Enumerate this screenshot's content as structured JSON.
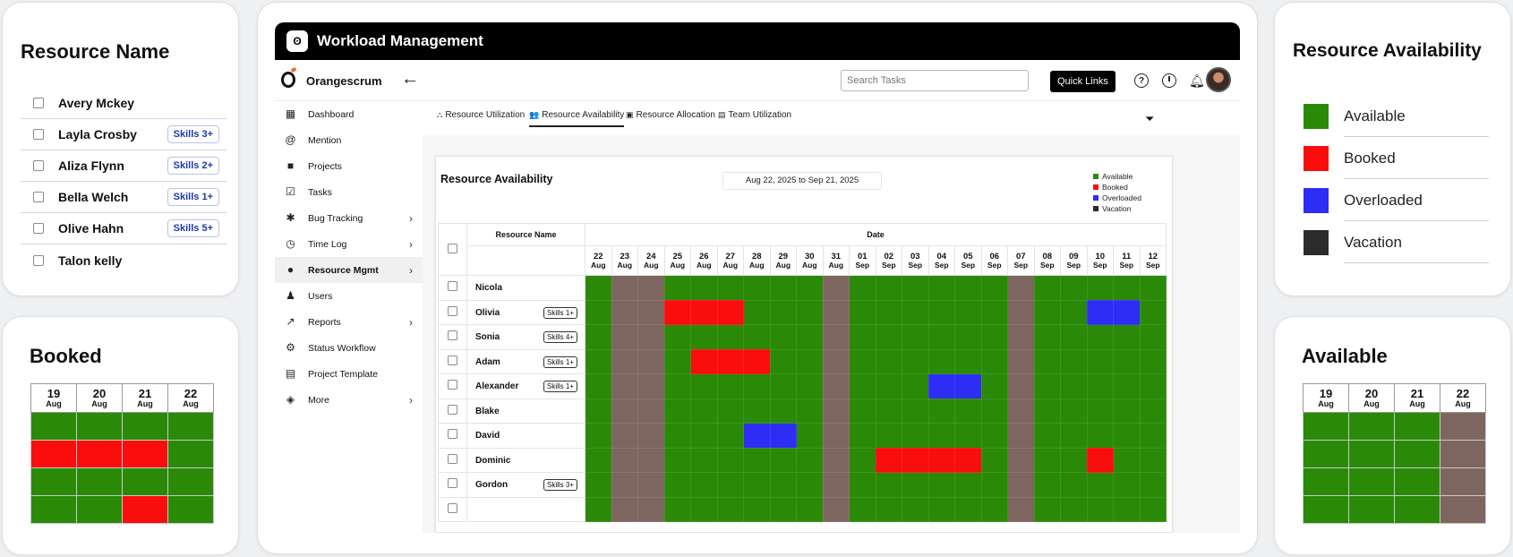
{
  "resource_name_card": {
    "title": "Resource Name",
    "items": [
      {
        "name": "Avery Mckey",
        "skill": ""
      },
      {
        "name": "Layla Crosby",
        "skill": "Skills 3+"
      },
      {
        "name": "Aliza Flynn",
        "skill": "Skills 2+"
      },
      {
        "name": "Bella Welch",
        "skill": "Skills 1+"
      },
      {
        "name": "Olive Hahn",
        "skill": "Skills 5+"
      },
      {
        "name": "Talon kelly",
        "skill": ""
      }
    ]
  },
  "booked_card": {
    "title": "Booked",
    "days": [
      {
        "d": "19",
        "m": "Aug"
      },
      {
        "d": "20",
        "m": "Aug"
      },
      {
        "d": "21",
        "m": "Aug"
      },
      {
        "d": "22",
        "m": "Aug"
      }
    ],
    "rows": [
      [
        "g",
        "g",
        "g",
        "g"
      ],
      [
        "r",
        "r",
        "r",
        "g"
      ],
      [
        "g",
        "g",
        "g",
        "g"
      ],
      [
        "g",
        "g",
        "r",
        "g"
      ]
    ]
  },
  "available_card": {
    "title": "Available",
    "days": [
      {
        "d": "19",
        "m": "Aug"
      },
      {
        "d": "20",
        "m": "Aug"
      },
      {
        "d": "21",
        "m": "Aug"
      },
      {
        "d": "22",
        "m": "Aug"
      }
    ],
    "rows": [
      [
        "g",
        "g",
        "g",
        "v"
      ],
      [
        "g",
        "g",
        "g",
        "v"
      ],
      [
        "g",
        "g",
        "g",
        "v"
      ],
      [
        "g",
        "g",
        "g",
        "v"
      ]
    ]
  },
  "legend_card": {
    "title": "Resource Availability",
    "items": [
      {
        "label": "Available",
        "color": "#2a8a08"
      },
      {
        "label": "Booked",
        "color": "#fa0d0d"
      },
      {
        "label": "Overloaded",
        "color": "#2d2df5"
      },
      {
        "label": "Vacation",
        "color": "#2b2b2b"
      }
    ]
  },
  "app": {
    "title": "Workload Management",
    "logo_glyph": "ʘ",
    "brand": "Orangescrum",
    "search_placeholder": "Search Tasks",
    "quick_links": "Quick Links",
    "icons": {
      "back": "arrow-left-icon",
      "help": "help-icon",
      "history": "clock-icon",
      "notifications": "bell-icon",
      "filter": "filter-icon"
    }
  },
  "sidebar": {
    "items": [
      {
        "label": "Dashboard",
        "icon": "▦",
        "chevron": false,
        "active": false
      },
      {
        "label": "Mention",
        "icon": "@",
        "chevron": false,
        "active": false
      },
      {
        "label": "Projects",
        "icon": "■",
        "chevron": false,
        "active": false
      },
      {
        "label": "Tasks",
        "icon": "☑",
        "chevron": false,
        "active": false
      },
      {
        "label": "Bug Tracking",
        "icon": "✱",
        "chevron": true,
        "active": false
      },
      {
        "label": "Time Log",
        "icon": "◷",
        "chevron": true,
        "active": false
      },
      {
        "label": "Resource Mgmt",
        "icon": "●",
        "chevron": true,
        "active": true
      },
      {
        "label": "Users",
        "icon": "♟",
        "chevron": false,
        "active": false
      },
      {
        "label": "Reports",
        "icon": "↗",
        "chevron": true,
        "active": false
      },
      {
        "label": "Status Workflow",
        "icon": "⚙",
        "chevron": false,
        "active": false
      },
      {
        "label": "Project Template",
        "icon": "▤",
        "chevron": false,
        "active": false
      },
      {
        "label": "More",
        "icon": "◈",
        "chevron": true,
        "active": false
      }
    ]
  },
  "tabs": [
    {
      "label": "Resource Utilization",
      "icon": "⛬",
      "active": false
    },
    {
      "label": "Resource Availability",
      "icon": "👥",
      "active": true
    },
    {
      "label": "Resource Allocation",
      "icon": "▣",
      "active": false
    },
    {
      "label": "Team Utilization",
      "icon": "▤",
      "active": false
    }
  ],
  "availability": {
    "title": "Resource Availability",
    "date_range": "Aug 22, 2025 to Sep 21, 2025",
    "legend": [
      {
        "label": "Available",
        "color": "#2a8a08"
      },
      {
        "label": "Booked",
        "color": "#fa0d0d"
      },
      {
        "label": "Overloaded",
        "color": "#2d2df5"
      },
      {
        "label": "Vacation",
        "color": "#2b2b2b"
      }
    ],
    "name_header": "Resource Name",
    "date_header": "Date",
    "days": [
      {
        "d": "22",
        "m": "Aug"
      },
      {
        "d": "23",
        "m": "Aug"
      },
      {
        "d": "24",
        "m": "Aug"
      },
      {
        "d": "25",
        "m": "Aug"
      },
      {
        "d": "26",
        "m": "Aug"
      },
      {
        "d": "27",
        "m": "Aug"
      },
      {
        "d": "28",
        "m": "Aug"
      },
      {
        "d": "29",
        "m": "Aug"
      },
      {
        "d": "30",
        "m": "Aug"
      },
      {
        "d": "31",
        "m": "Aug"
      },
      {
        "d": "01",
        "m": "Sep"
      },
      {
        "d": "02",
        "m": "Sep"
      },
      {
        "d": "03",
        "m": "Sep"
      },
      {
        "d": "04",
        "m": "Sep"
      },
      {
        "d": "05",
        "m": "Sep"
      },
      {
        "d": "06",
        "m": "Sep"
      },
      {
        "d": "07",
        "m": "Sep"
      },
      {
        "d": "08",
        "m": "Sep"
      },
      {
        "d": "09",
        "m": "Sep"
      },
      {
        "d": "10",
        "m": "Sep"
      },
      {
        "d": "11",
        "m": "Sep"
      },
      {
        "d": "12",
        "m": "Sep"
      }
    ],
    "rows": [
      {
        "name": "Nicola",
        "skill": "",
        "cells": [
          "g",
          "v",
          "v",
          "g",
          "g",
          "g",
          "g",
          "g",
          "g",
          "v",
          "g",
          "g",
          "g",
          "g",
          "g",
          "g",
          "v",
          "g",
          "g",
          "g",
          "g",
          "g"
        ]
      },
      {
        "name": "Olivia",
        "skill": "Skills 1+",
        "cells": [
          "g",
          "v",
          "v",
          "r",
          "r",
          "r",
          "g",
          "g",
          "g",
          "v",
          "g",
          "g",
          "g",
          "g",
          "g",
          "g",
          "v",
          "g",
          "g",
          "b",
          "b",
          "g"
        ]
      },
      {
        "name": "Sonia",
        "skill": "Skills 4+",
        "cells": [
          "g",
          "v",
          "v",
          "g",
          "g",
          "g",
          "g",
          "g",
          "g",
          "v",
          "g",
          "g",
          "g",
          "g",
          "g",
          "g",
          "v",
          "g",
          "g",
          "g",
          "g",
          "g"
        ]
      },
      {
        "name": "Adam",
        "skill": "Skills 1+",
        "cells": [
          "g",
          "v",
          "v",
          "g",
          "r",
          "r",
          "r",
          "g",
          "g",
          "v",
          "g",
          "g",
          "g",
          "g",
          "g",
          "g",
          "v",
          "g",
          "g",
          "g",
          "g",
          "g"
        ]
      },
      {
        "name": "Alexander",
        "skill": "Skills 1+",
        "cells": [
          "g",
          "v",
          "v",
          "g",
          "g",
          "g",
          "g",
          "g",
          "g",
          "v",
          "g",
          "g",
          "g",
          "b",
          "b",
          "g",
          "v",
          "g",
          "g",
          "g",
          "g",
          "g"
        ]
      },
      {
        "name": "Blake",
        "skill": "",
        "cells": [
          "g",
          "v",
          "v",
          "g",
          "g",
          "g",
          "g",
          "g",
          "g",
          "v",
          "g",
          "g",
          "g",
          "g",
          "g",
          "g",
          "v",
          "g",
          "g",
          "g",
          "g",
          "g"
        ]
      },
      {
        "name": "David",
        "skill": "",
        "cells": [
          "g",
          "v",
          "v",
          "g",
          "g",
          "g",
          "b",
          "b",
          "g",
          "v",
          "g",
          "g",
          "g",
          "g",
          "g",
          "g",
          "v",
          "g",
          "g",
          "g",
          "g",
          "g"
        ]
      },
      {
        "name": "Dominic",
        "skill": "",
        "cells": [
          "g",
          "v",
          "v",
          "g",
          "g",
          "g",
          "g",
          "g",
          "g",
          "v",
          "g",
          "r",
          "r",
          "r",
          "r",
          "g",
          "v",
          "g",
          "g",
          "r",
          "g",
          "g"
        ]
      },
      {
        "name": "Gordon",
        "skill": "Skills 3+",
        "cells": [
          "g",
          "v",
          "v",
          "g",
          "g",
          "g",
          "g",
          "g",
          "g",
          "v",
          "g",
          "g",
          "g",
          "g",
          "g",
          "g",
          "v",
          "g",
          "g",
          "g",
          "g",
          "g"
        ]
      },
      {
        "name": "",
        "skill": "",
        "cells": [
          "g",
          "v",
          "v",
          "g",
          "g",
          "g",
          "g",
          "g",
          "g",
          "v",
          "g",
          "g",
          "g",
          "g",
          "g",
          "g",
          "v",
          "g",
          "g",
          "g",
          "g",
          "g"
        ]
      }
    ]
  }
}
